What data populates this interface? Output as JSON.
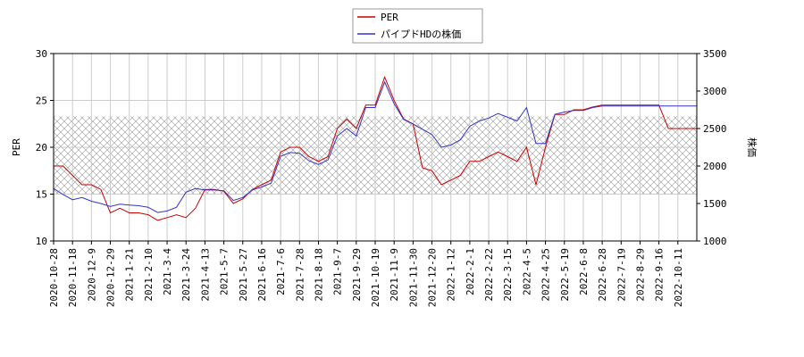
{
  "chart_data": {
    "type": "line",
    "ylabel": "PER",
    "y2label": "株価",
    "categories": [
      "2020-10-28",
      null,
      "2020-11-18",
      null,
      "2020-12-9",
      null,
      "2020-12-29",
      null,
      "2021-1-21",
      null,
      "2021-2-10",
      null,
      "2021-3-4",
      null,
      "2021-3-24",
      null,
      "2021-4-13",
      null,
      "2021-5-7",
      null,
      "2021-5-27",
      null,
      "2021-6-16",
      null,
      "2021-7-6",
      null,
      "2021-7-28",
      null,
      "2021-8-18",
      null,
      "2021-9-7",
      null,
      "2021-9-29",
      null,
      "2021-10-19",
      null,
      "2021-11-9",
      null,
      "2021-11-30",
      null,
      "2021-12-20",
      null,
      "2022-1-12",
      null,
      "2022-2-1",
      null,
      "2022-2-22",
      null,
      "2022-3-15",
      null,
      "2022-4-5",
      null,
      "2022-4-25",
      null,
      "2022-5-19",
      null,
      "2022-6-8",
      null,
      "2022-6-28",
      null,
      "2022-7-19",
      null,
      "2022-8-29",
      null,
      "2022-9-16",
      null,
      "2022-10-11",
      null,
      null
    ],
    "series": [
      {
        "name": "PER",
        "color": "#cc0000",
        "values": [
          18,
          18,
          17,
          16,
          16,
          15.5,
          13,
          13.5,
          13,
          13,
          12.8,
          12.2,
          12.5,
          12.8,
          12.5,
          13.5,
          15.5,
          15.5,
          15.3,
          14,
          14.5,
          15.5,
          16,
          16.5,
          19.5,
          20,
          20,
          19,
          18.5,
          19,
          22,
          23,
          22,
          24.5,
          24.5,
          27.5,
          25,
          23,
          22.5,
          17.8,
          17.5,
          16,
          16.5,
          17,
          18.5,
          18.5,
          19,
          19.5,
          19,
          18.5,
          20,
          16,
          20,
          23.5,
          23.5,
          24,
          24,
          24.3,
          24.5,
          24.5,
          24.5,
          24.5,
          24.5,
          24.5,
          24.5,
          22,
          22,
          22,
          22
        ]
      },
      {
        "name": "パイプドHDの株価",
        "color": "#3333cc",
        "axis": "y2",
        "values": [
          1700,
          1620,
          1550,
          1580,
          1530,
          1500,
          1460,
          1490,
          1480,
          1470,
          1450,
          1380,
          1400,
          1450,
          1650,
          1700,
          1680,
          1680,
          1670,
          1540,
          1580,
          1680,
          1720,
          1770,
          2130,
          2180,
          2170,
          2070,
          2020,
          2080,
          2400,
          2500,
          2400,
          2780,
          2780,
          3120,
          2830,
          2620,
          2560,
          2490,
          2420,
          2250,
          2280,
          2350,
          2530,
          2600,
          2640,
          2700,
          2650,
          2600,
          2780,
          2300,
          2300,
          2690,
          2720,
          2740,
          2740,
          2780,
          2800,
          2800,
          2800,
          2800,
          2800,
          2800,
          2800,
          2800,
          2800,
          2800,
          2800
        ]
      }
    ],
    "band": [
      15,
      23.3
    ],
    "ylim": [
      10,
      30
    ],
    "yticks": [
      10,
      15,
      20,
      25,
      30
    ],
    "y2lim": [
      1000,
      3500
    ],
    "y2ticks": [
      1000,
      1500,
      2000,
      2500,
      3000,
      3500
    ],
    "grid": true
  }
}
